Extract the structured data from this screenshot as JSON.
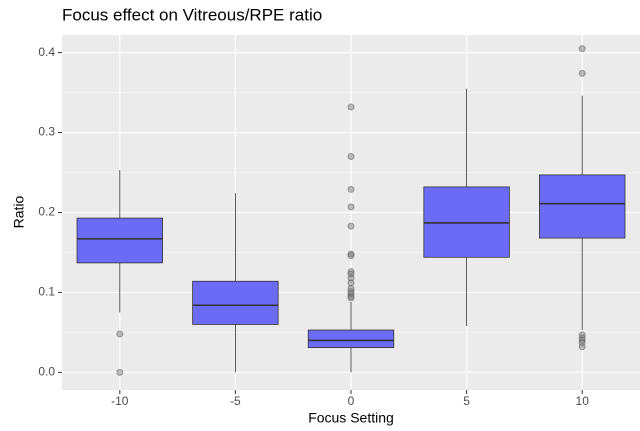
{
  "chart_data": {
    "type": "boxplot",
    "title": "Focus effect on Vitreous/RPE ratio",
    "x_label": "Focus Setting",
    "y_label": "Ratio",
    "categories": [
      "-10",
      "-5",
      "0",
      "5",
      "10"
    ],
    "color": "#6b6bf5",
    "grid": true,
    "ylim": [
      -0.022,
      0.422
    ],
    "yticks": [
      {
        "value": 0,
        "label": "0.0"
      },
      0.1,
      0.2,
      0.3,
      0.4
    ],
    "minor_yticks": [
      0.05,
      0.15,
      0.25,
      0.35
    ],
    "boxes": [
      {
        "whisker_low": 0.075,
        "q1": 0.137,
        "median": 0.167,
        "q3": 0.193,
        "whisker_high": 0.253,
        "outliers": [
          0.048,
          0.0
        ]
      },
      {
        "whisker_low": 0.0,
        "q1": 0.06,
        "median": 0.084,
        "q3": 0.114,
        "whisker_high": 0.224,
        "outliers": []
      },
      {
        "whisker_low": 0.0,
        "q1": 0.031,
        "median": 0.04,
        "q3": 0.053,
        "whisker_high": 0.088,
        "outliers": [
          0.332,
          0.27,
          0.229,
          0.207,
          0.183,
          0.148,
          0.146,
          0.126,
          0.123,
          0.118,
          0.112,
          0.105,
          0.101,
          0.098,
          0.095,
          0.093
        ]
      },
      {
        "whisker_low": 0.058,
        "q1": 0.144,
        "median": 0.187,
        "q3": 0.232,
        "whisker_high": 0.355,
        "outliers": []
      },
      {
        "whisker_low": 0.053,
        "q1": 0.168,
        "median": 0.211,
        "q3": 0.247,
        "whisker_high": 0.346,
        "outliers": [
          0.405,
          0.374,
          0.047,
          0.043,
          0.04,
          0.037,
          0.032
        ]
      }
    ]
  }
}
